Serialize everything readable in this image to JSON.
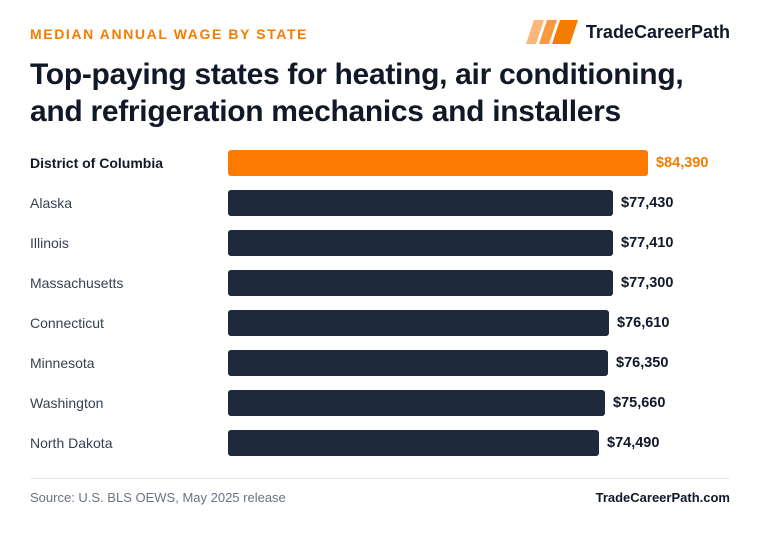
{
  "header": {
    "eyebrow": "MEDIAN ANNUAL WAGE BY STATE",
    "brand_name": "TradeCareerPath",
    "title": "Top-paying states for heating, air conditioning, and refrigeration mechanics and installers"
  },
  "colors": {
    "accent": "#ff7a00",
    "bar": "#1e293b"
  },
  "chart_data": {
    "type": "bar",
    "orientation": "horizontal",
    "title": "Top-paying states for heating, air conditioning, and refrigeration mechanics and installers",
    "categories": [
      "District of Columbia",
      "Alaska",
      "Illinois",
      "Massachusetts",
      "Connecticut",
      "Minnesota",
      "Washington",
      "North Dakota"
    ],
    "values": [
      84390,
      77430,
      77410,
      77300,
      76610,
      76350,
      75660,
      74490
    ],
    "value_labels": [
      "$84,390",
      "$77,430",
      "$77,410",
      "$77,300",
      "$76,610",
      "$76,350",
      "$75,660",
      "$74,490"
    ],
    "highlight_index": 0,
    "xlim": [
      0,
      84390
    ],
    "grid": false,
    "legend": "none"
  },
  "footer": {
    "source": "Source: U.S. BLS OEWS, May 2025 release",
    "brand_url": "TradeCareerPath.com"
  }
}
